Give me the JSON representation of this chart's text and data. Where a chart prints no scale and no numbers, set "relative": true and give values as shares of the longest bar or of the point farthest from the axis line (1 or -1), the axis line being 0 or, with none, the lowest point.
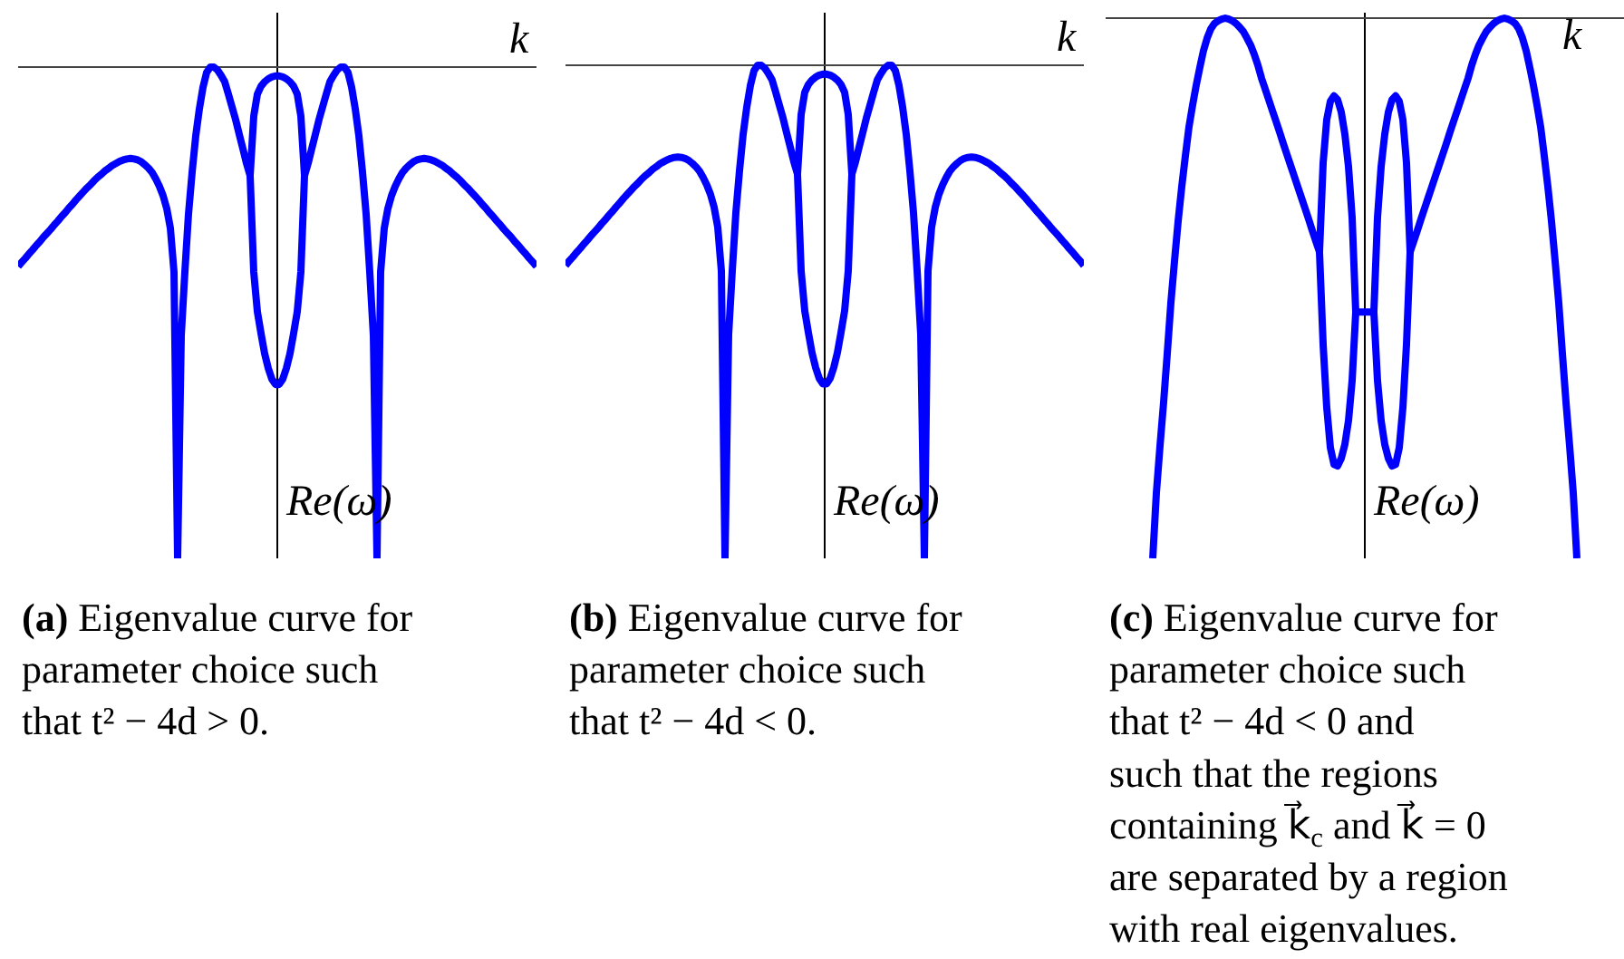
{
  "chart_data": [
    {
      "type": "line",
      "relative": true,
      "xlabel": "k",
      "ylabel": "Re(ω)",
      "categories": [
        null,
        null,
        null,
        null,
        null,
        null,
        null,
        null,
        null,
        null,
        null,
        null,
        null,
        null,
        null,
        null,
        null,
        null,
        null,
        null,
        null,
        null,
        null,
        null,
        null,
        null,
        null,
        null,
        null,
        null,
        null,
        null,
        null,
        null,
        null,
        null,
        null,
        null,
        null,
        null,
        null,
        null,
        null,
        null,
        null,
        null,
        null,
        null,
        null,
        null,
        null,
        null,
        null,
        null,
        null,
        null,
        null,
        null,
        null,
        null,
        null,
        null,
        null,
        null,
        null,
        null,
        null,
        null,
        null,
        null,
        null,
        null,
        null,
        null,
        null,
        null,
        null,
        null,
        null,
        null,
        null,
        null,
        null,
        null,
        null,
        null,
        null,
        null,
        null,
        null,
        null,
        null,
        null,
        null,
        null,
        null,
        null,
        null,
        null,
        null,
        null,
        null,
        null,
        null,
        null,
        null,
        null,
        null,
        null,
        null,
        null,
        null,
        null,
        null,
        null,
        null,
        null,
        null,
        null,
        null,
        null,
        null,
        null,
        null,
        null,
        null,
        null,
        null,
        null,
        null,
        null,
        null,
        null,
        null,
        null,
        null,
        null,
        null,
        null,
        null,
        null,
        null,
        null,
        null
      ],
      "series": [
        {
          "color": "#0000ff",
          "values": [
            -0.406,
            -0.397,
            -0.389,
            -0.38,
            -0.372,
            -0.363,
            -0.355,
            -0.346,
            -0.338,
            -0.33,
            -0.321,
            -0.313,
            -0.304,
            -0.296,
            -0.287,
            -0.279,
            -0.27,
            -0.262,
            -0.254,
            -0.246,
            -0.239,
            -0.231,
            -0.224,
            -0.218,
            -0.211,
            -0.206,
            -0.2,
            -0.196,
            -0.192,
            -0.189,
            -0.187,
            -0.186,
            -0.187,
            -0.189,
            -0.193,
            -0.199,
            -0.206,
            -0.215,
            -0.228,
            -0.243,
            -0.262,
            -0.288,
            -0.328,
            -0.417,
            -1,
            -0.546,
            -0.417,
            -0.299,
            -0.214,
            -0.14,
            -0.085,
            -0.041,
            -0.011,
            0,
            0,
            -0.006,
            -0.017,
            -0.03,
            -0.055,
            -0.081,
            -0.107,
            -0.137,
            -0.166,
            -0.196,
            -0.221,
            -0.1,
            -0.055,
            -0.039,
            -0.03,
            -0.024,
            -0.02,
            -0.018,
            -0.018,
            -0.02,
            -0.024,
            -0.03,
            -0.039,
            -0.055,
            -0.1,
            -0.221,
            -0.196,
            -0.166,
            -0.137,
            -0.107,
            -0.081,
            -0.055,
            -0.03,
            -0.017,
            -0.006,
            0,
            0,
            -0.011,
            -0.041,
            -0.085,
            -0.14,
            -0.214,
            -0.299,
            -0.417,
            -0.546,
            -1,
            -0.417,
            -0.328,
            -0.288,
            -0.262,
            -0.243,
            -0.228,
            -0.215,
            -0.206,
            -0.199,
            -0.193,
            -0.189,
            -0.187,
            -0.186,
            -0.187,
            -0.189,
            -0.192,
            -0.196,
            -0.2,
            -0.206,
            -0.211,
            -0.218,
            -0.224,
            -0.231,
            -0.239,
            -0.246,
            -0.254,
            -0.262,
            -0.27,
            -0.279,
            -0.287,
            -0.296,
            -0.304,
            -0.313,
            -0.321,
            -0.33,
            -0.338,
            -0.346,
            -0.355,
            -0.363,
            -0.372,
            -0.38,
            -0.389,
            -0.397,
            -0.406
          ]
        },
        {
          "color": "#0000ff",
          "values": [
            null,
            null,
            null,
            null,
            null,
            null,
            null,
            null,
            null,
            null,
            null,
            null,
            null,
            null,
            null,
            null,
            null,
            null,
            null,
            null,
            null,
            null,
            null,
            null,
            null,
            null,
            null,
            null,
            null,
            null,
            null,
            null,
            null,
            null,
            null,
            null,
            null,
            null,
            null,
            null,
            null,
            null,
            null,
            null,
            null,
            null,
            null,
            null,
            null,
            null,
            null,
            null,
            null,
            null,
            null,
            null,
            null,
            null,
            null,
            null,
            null,
            null,
            null,
            null,
            -0.221,
            -0.417,
            -0.498,
            -0.542,
            -0.583,
            -0.613,
            -0.635,
            -0.646,
            -0.646,
            -0.635,
            -0.613,
            -0.583,
            -0.542,
            -0.498,
            -0.417,
            -0.221,
            null,
            null,
            null,
            null,
            null,
            null,
            null,
            null,
            null,
            null,
            null,
            null,
            null,
            null,
            null,
            null,
            null,
            null,
            null,
            null,
            null,
            null,
            null,
            null,
            null,
            null,
            null,
            null,
            null,
            null,
            null,
            null,
            null,
            null,
            null,
            null,
            null,
            null,
            null,
            null,
            null,
            null,
            null,
            null,
            null,
            null,
            null,
            null,
            null,
            null,
            null,
            null,
            null,
            null,
            null,
            null,
            null,
            null,
            null,
            null,
            null,
            null,
            null,
            null
          ]
        }
      ],
      "annotations": [
        "(a) Eigenvalue curve for parameter choice such that t² − 4d > 0."
      ]
    },
    {
      "type": "line",
      "relative": true,
      "xlabel": "k",
      "ylabel": "Re(ω)",
      "categories": [
        null,
        null,
        null,
        null,
        null,
        null,
        null,
        null,
        null,
        null,
        null,
        null,
        null,
        null,
        null,
        null,
        null,
        null,
        null,
        null,
        null,
        null,
        null,
        null,
        null,
        null,
        null,
        null,
        null,
        null,
        null,
        null,
        null,
        null,
        null,
        null,
        null,
        null,
        null,
        null,
        null,
        null,
        null,
        null,
        null,
        null,
        null,
        null,
        null,
        null,
        null,
        null,
        null,
        null,
        null,
        null,
        null,
        null,
        null,
        null,
        null,
        null,
        null,
        null,
        null,
        null,
        null,
        null,
        null,
        null,
        null,
        null,
        null,
        null,
        null,
        null,
        null,
        null,
        null,
        null,
        null,
        null,
        null,
        null,
        null,
        null,
        null,
        null,
        null,
        null,
        null,
        null,
        null,
        null,
        null,
        null,
        null,
        null,
        null,
        null,
        null,
        null,
        null,
        null,
        null,
        null,
        null,
        null,
        null,
        null,
        null,
        null,
        null,
        null,
        null,
        null,
        null,
        null,
        null,
        null,
        null,
        null,
        null,
        null,
        null,
        null,
        null,
        null,
        null,
        null,
        null,
        null,
        null,
        null,
        null,
        null,
        null,
        null,
        null,
        null,
        null,
        null,
        null,
        null
      ],
      "series": [
        {
          "color": "#0000ff",
          "values": [
            -0.406,
            -0.397,
            -0.389,
            -0.38,
            -0.372,
            -0.363,
            -0.355,
            -0.346,
            -0.338,
            -0.33,
            -0.321,
            -0.313,
            -0.304,
            -0.296,
            -0.287,
            -0.279,
            -0.27,
            -0.262,
            -0.254,
            -0.246,
            -0.239,
            -0.231,
            -0.224,
            -0.218,
            -0.211,
            -0.206,
            -0.2,
            -0.196,
            -0.192,
            -0.189,
            -0.187,
            -0.186,
            -0.187,
            -0.189,
            -0.193,
            -0.199,
            -0.206,
            -0.215,
            -0.228,
            -0.243,
            -0.262,
            -0.288,
            -0.328,
            -0.417,
            -1,
            -0.546,
            -0.417,
            -0.299,
            -0.214,
            -0.14,
            -0.085,
            -0.041,
            -0.011,
            0,
            0,
            -0.006,
            -0.017,
            -0.03,
            -0.055,
            -0.081,
            -0.107,
            -0.137,
            -0.166,
            -0.196,
            -0.221,
            -0.1,
            -0.055,
            -0.039,
            -0.03,
            -0.024,
            -0.02,
            -0.018,
            -0.018,
            -0.02,
            -0.024,
            -0.03,
            -0.039,
            -0.055,
            -0.1,
            -0.221,
            -0.196,
            -0.166,
            -0.137,
            -0.107,
            -0.081,
            -0.055,
            -0.03,
            -0.017,
            -0.006,
            0,
            0,
            -0.011,
            -0.041,
            -0.085,
            -0.14,
            -0.214,
            -0.299,
            -0.417,
            -0.546,
            -1,
            -0.417,
            -0.328,
            -0.288,
            -0.262,
            -0.243,
            -0.228,
            -0.215,
            -0.206,
            -0.199,
            -0.193,
            -0.189,
            -0.187,
            -0.186,
            -0.187,
            -0.189,
            -0.192,
            -0.196,
            -0.2,
            -0.206,
            -0.211,
            -0.218,
            -0.224,
            -0.231,
            -0.239,
            -0.246,
            -0.254,
            -0.262,
            -0.27,
            -0.279,
            -0.287,
            -0.296,
            -0.304,
            -0.313,
            -0.321,
            -0.33,
            -0.338,
            -0.346,
            -0.355,
            -0.363,
            -0.372,
            -0.38,
            -0.389,
            -0.397,
            -0.406
          ]
        },
        {
          "color": "#0000ff",
          "values": [
            null,
            null,
            null,
            null,
            null,
            null,
            null,
            null,
            null,
            null,
            null,
            null,
            null,
            null,
            null,
            null,
            null,
            null,
            null,
            null,
            null,
            null,
            null,
            null,
            null,
            null,
            null,
            null,
            null,
            null,
            null,
            null,
            null,
            null,
            null,
            null,
            null,
            null,
            null,
            null,
            null,
            null,
            null,
            null,
            null,
            null,
            null,
            null,
            null,
            null,
            null,
            null,
            null,
            null,
            null,
            null,
            null,
            null,
            null,
            null,
            null,
            null,
            null,
            null,
            -0.221,
            -0.417,
            -0.498,
            -0.542,
            -0.583,
            -0.613,
            -0.635,
            -0.646,
            -0.646,
            -0.635,
            -0.613,
            -0.583,
            -0.542,
            -0.498,
            -0.417,
            -0.221,
            null,
            null,
            null,
            null,
            null,
            null,
            null,
            null,
            null,
            null,
            null,
            null,
            null,
            null,
            null,
            null,
            null,
            null,
            null,
            null,
            null,
            null,
            null,
            null,
            null,
            null,
            null,
            null,
            null,
            null,
            null,
            null,
            null,
            null,
            null,
            null,
            null,
            null,
            null,
            null,
            null,
            null,
            null,
            null,
            null,
            null,
            null,
            null,
            null,
            null,
            null,
            null,
            null,
            null,
            null,
            null,
            null,
            null,
            null,
            null,
            null,
            null,
            null,
            null
          ]
        }
      ],
      "annotations": [
        "(b) Eigenvalue curve for parameter choice such that t² − 4d < 0."
      ]
    },
    {
      "type": "line",
      "relative": true,
      "xlabel": "k",
      "ylabel": "Re(ω)",
      "categories": [
        null,
        null,
        null,
        null,
        null,
        null,
        null,
        null,
        null,
        null,
        null,
        null,
        null,
        null,
        null,
        null,
        null,
        null,
        null,
        null,
        null,
        null,
        null,
        null,
        null,
        null,
        null,
        null,
        null,
        null,
        null,
        null,
        null,
        null,
        null,
        null,
        null,
        null,
        null,
        null,
        null,
        null,
        null,
        null,
        null,
        null,
        null,
        null,
        null,
        null,
        null,
        null,
        null,
        null,
        null,
        null,
        null,
        null,
        null,
        null,
        null,
        null,
        null,
        null,
        null,
        null,
        null,
        null,
        null,
        null,
        null,
        null,
        null,
        null,
        null,
        null,
        null,
        null,
        null,
        null,
        null,
        null,
        null,
        null,
        null,
        null,
        null,
        null,
        null,
        null,
        null,
        null,
        null,
        null,
        null,
        null,
        null,
        null,
        null,
        null,
        null,
        null,
        null,
        null,
        null,
        null,
        null,
        null,
        null,
        null,
        null,
        null,
        null,
        null,
        null,
        null,
        null,
        null,
        null,
        null,
        null,
        null,
        null,
        null,
        null,
        null,
        null,
        null,
        null,
        null,
        null,
        null,
        null,
        null,
        null,
        null,
        null,
        null,
        null,
        null,
        null,
        null,
        null,
        null
      ],
      "series": [
        {
          "color": "#0000ff",
          "values": [
            null,
            null,
            null,
            null,
            null,
            null,
            null,
            null,
            null,
            null,
            null,
            null,
            null,
            -1,
            -0.879,
            -0.792,
            -0.711,
            -0.621,
            -0.527,
            -0.45,
            -0.376,
            -0.312,
            -0.255,
            -0.201,
            -0.161,
            -0.124,
            -0.091,
            -0.06,
            -0.037,
            -0.02,
            -0.01,
            -0.005,
            -0.002,
            0,
            -0.002,
            -0.005,
            -0.01,
            -0.017,
            -0.025,
            -0.037,
            -0.05,
            -0.067,
            -0.087,
            -0.111,
            -0.131,
            -0.151,
            -0.171,
            -0.191,
            -0.211,
            -0.232,
            -0.252,
            -0.272,
            -0.292,
            -0.312,
            -0.332,
            -0.352,
            -0.372,
            -0.393,
            -0.413,
            -0.433,
            -0.268,
            -0.188,
            -0.154,
            -0.144,
            -0.151,
            -0.174,
            -0.215,
            -0.275,
            -0.369,
            -0.544,
            -0.544,
            -0.544,
            -0.544,
            -0.544,
            -0.544,
            -0.369,
            -0.275,
            -0.215,
            -0.174,
            -0.151,
            -0.144,
            -0.154,
            -0.188,
            -0.268,
            -0.433,
            -0.413,
            -0.393,
            -0.372,
            -0.352,
            -0.332,
            -0.312,
            -0.292,
            -0.272,
            -0.252,
            -0.232,
            -0.211,
            -0.191,
            -0.171,
            -0.151,
            -0.131,
            -0.111,
            -0.087,
            -0.067,
            -0.05,
            -0.037,
            -0.025,
            -0.017,
            -0.01,
            -0.005,
            -0.002,
            0,
            -0.002,
            -0.005,
            -0.01,
            -0.02,
            -0.037,
            -0.06,
            -0.091,
            -0.124,
            -0.161,
            -0.201,
            -0.255,
            -0.312,
            -0.376,
            -0.45,
            -0.527,
            -0.621,
            -0.711,
            -0.792,
            -0.879,
            -1,
            null,
            null,
            null,
            null,
            null,
            null,
            null,
            null,
            null,
            null,
            null,
            null,
            null
          ]
        },
        {
          "color": "#0000ff",
          "values": [
            null,
            null,
            null,
            null,
            null,
            null,
            null,
            null,
            null,
            null,
            null,
            null,
            null,
            null,
            null,
            null,
            null,
            null,
            null,
            null,
            null,
            null,
            null,
            null,
            null,
            null,
            null,
            null,
            null,
            null,
            null,
            null,
            null,
            null,
            null,
            null,
            null,
            null,
            null,
            null,
            null,
            null,
            null,
            null,
            null,
            null,
            null,
            null,
            null,
            null,
            null,
            null,
            null,
            null,
            null,
            null,
            null,
            null,
            null,
            -0.433,
            -0.604,
            -0.721,
            -0.795,
            -0.826,
            -0.829,
            -0.815,
            -0.789,
            -0.745,
            -0.671,
            -0.544,
            null,
            null,
            null,
            null,
            -0.544,
            -0.671,
            -0.745,
            -0.789,
            -0.815,
            -0.829,
            -0.826,
            -0.795,
            -0.721,
            -0.604,
            -0.433,
            null,
            null,
            null,
            null,
            null,
            null,
            null,
            null,
            null,
            null,
            null,
            null,
            null,
            null,
            null,
            null,
            null,
            null,
            null,
            null,
            null,
            null,
            null,
            null,
            null,
            null,
            null,
            null,
            null,
            null,
            null,
            null,
            null,
            null,
            null,
            null,
            null,
            null,
            null,
            null,
            null,
            null,
            null,
            null,
            null,
            null,
            null,
            null,
            null,
            null,
            null,
            null,
            null,
            null,
            null,
            null,
            null,
            null,
            null
          ]
        }
      ],
      "annotations": [
        "(c) Eigenvalue curve for parameter choice such that t² − 4d < 0 and such that the regions containing k⃗$_{c}$ and k⃗ = 0 are separated by a region with real eigenvalues."
      ]
    }
  ]
}
